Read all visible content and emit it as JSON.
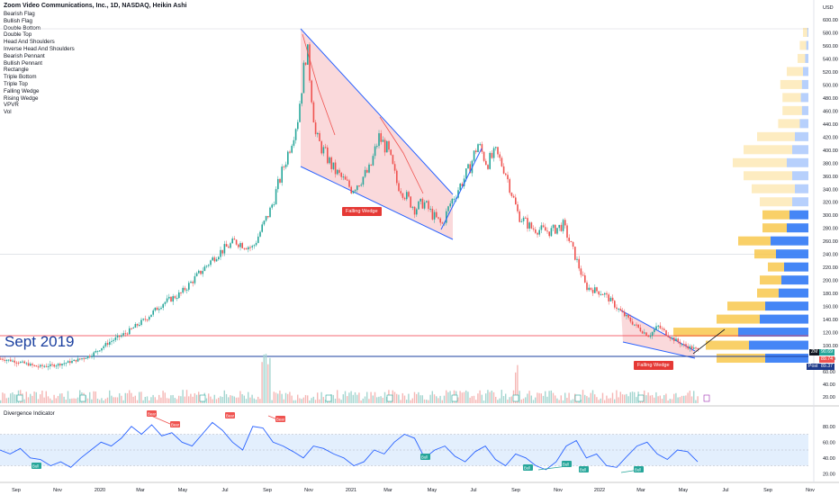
{
  "header": {
    "title": "Zoom Video Communications, Inc., 1D, NASDAQ, Heikin Ashi",
    "currency": "USD"
  },
  "studies": [
    "Bearish Flag",
    "Bullish Flag",
    "Double Bottom",
    "Double Top",
    "Head And Shoulders",
    "Inverse Head And Shoulders",
    "Bearish Pennant",
    "Bullish Pennant",
    "Rectangle",
    "Triple Bottom",
    "Triple Top",
    "Falling Wedge",
    "Rising Wedge",
    "VPVR",
    "Vol"
  ],
  "annotations": {
    "sept_label": "Sept 2019",
    "wedge1": "Falling Wedge",
    "wedge2": "Falling Wedge"
  },
  "price_tags": {
    "zm_label": "ZM",
    "zm_price": "90.69",
    "tag2": "89.74",
    "post_label": "Post",
    "post_price": "89.37"
  },
  "indicator": {
    "title": "Divergence Indicator",
    "bear_label": "Bear",
    "bull_label": "Bull"
  },
  "colors": {
    "up": "#26a69a",
    "down": "#ef5350",
    "wedge_line": "#2962ff",
    "wedge_fill": "#f8c9cc",
    "sept_line": "#f23645",
    "vp_blue": "#3179f5",
    "vp_yellow": "#f8c84d",
    "osc": "#2962ff"
  },
  "chart_data": {
    "type": "candlestick",
    "title": "Zoom Video Communications, Inc., 1D, NASDAQ, Heikin Ashi",
    "y_axis_ticks": [
      600,
      580,
      560,
      540,
      520,
      500,
      480,
      460,
      440,
      420,
      400,
      380,
      360,
      340,
      320,
      300,
      280,
      260,
      240,
      220,
      200,
      180,
      160,
      140,
      120,
      100,
      80,
      60
    ],
    "x_axis_ticks": [
      "Sep",
      "Nov",
      "2020",
      "Mar",
      "May",
      "Jul",
      "Sep",
      "Nov",
      "2021",
      "Mar",
      "May",
      "Jul",
      "Sep",
      "Nov",
      "2022",
      "Mar",
      "May",
      "Jul",
      "Sep",
      "Nov"
    ],
    "volume_ticks": [
      40,
      20
    ],
    "indicator_ticks": [
      80,
      60,
      40,
      20
    ],
    "price_path": [
      [
        0,
        80
      ],
      [
        20,
        75
      ],
      [
        40,
        68
      ],
      [
        60,
        70
      ],
      [
        80,
        76
      ],
      [
        100,
        85
      ],
      [
        120,
        105
      ],
      [
        140,
        120
      ],
      [
        160,
        140
      ],
      [
        180,
        165
      ],
      [
        200,
        180
      ],
      [
        220,
        210
      ],
      [
        240,
        240
      ],
      [
        260,
        260
      ],
      [
        280,
        250
      ],
      [
        300,
        310
      ],
      [
        320,
        400
      ],
      [
        330,
        450
      ],
      [
        340,
        560
      ],
      [
        350,
        420
      ],
      [
        370,
        370
      ],
      [
        390,
        340
      ],
      [
        410,
        370
      ],
      [
        420,
        420
      ],
      [
        430,
        400
      ],
      [
        440,
        350
      ],
      [
        460,
        310
      ],
      [
        470,
        320
      ],
      [
        480,
        300
      ],
      [
        490,
        285
      ],
      [
        500,
        320
      ],
      [
        520,
        370
      ],
      [
        530,
        410
      ],
      [
        540,
        380
      ],
      [
        550,
        395
      ],
      [
        560,
        370
      ],
      [
        575,
        300
      ],
      [
        590,
        280
      ],
      [
        610,
        275
      ],
      [
        625,
        285
      ],
      [
        640,
        230
      ],
      [
        650,
        190
      ],
      [
        670,
        180
      ],
      [
        690,
        150
      ],
      [
        710,
        125
      ],
      [
        720,
        115
      ],
      [
        730,
        130
      ],
      [
        745,
        112
      ],
      [
        760,
        100
      ],
      [
        775,
        93
      ]
    ],
    "volume_profile": [
      {
        "price": 580,
        "up": 8,
        "down": 2
      },
      {
        "price": 560,
        "up": 12,
        "down": 4
      },
      {
        "price": 540,
        "up": 14,
        "down": 6
      },
      {
        "price": 520,
        "up": 30,
        "down": 10
      },
      {
        "price": 500,
        "up": 40,
        "down": 12
      },
      {
        "price": 480,
        "up": 34,
        "down": 14
      },
      {
        "price": 460,
        "up": 36,
        "down": 12
      },
      {
        "price": 440,
        "up": 40,
        "down": 16
      },
      {
        "price": 420,
        "up": 70,
        "down": 25
      },
      {
        "price": 400,
        "up": 90,
        "down": 30
      },
      {
        "price": 380,
        "up": 100,
        "down": 40
      },
      {
        "price": 360,
        "up": 90,
        "down": 30
      },
      {
        "price": 340,
        "up": 80,
        "down": 25
      },
      {
        "price": 320,
        "up": 60,
        "down": 30
      },
      {
        "price": 300,
        "up": 50,
        "down": 35
      },
      {
        "price": 280,
        "up": 45,
        "down": 40
      },
      {
        "price": 260,
        "up": 60,
        "down": 70
      },
      {
        "price": 240,
        "up": 40,
        "down": 60
      },
      {
        "price": 220,
        "up": 30,
        "down": 45
      },
      {
        "price": 200,
        "up": 40,
        "down": 50
      },
      {
        "price": 180,
        "up": 40,
        "down": 55
      },
      {
        "price": 160,
        "up": 70,
        "down": 80
      },
      {
        "price": 140,
        "up": 80,
        "down": 90
      },
      {
        "price": 120,
        "up": 120,
        "down": 130
      },
      {
        "price": 100,
        "up": 80,
        "down": 110
      },
      {
        "price": 80,
        "up": 90,
        "down": 80
      }
    ],
    "oscillator": [
      50,
      45,
      52,
      40,
      38,
      30,
      35,
      28,
      40,
      50,
      60,
      55,
      65,
      80,
      70,
      82,
      68,
      72,
      60,
      55,
      70,
      85,
      75,
      60,
      50,
      80,
      78,
      60,
      55,
      48,
      40,
      55,
      52,
      45,
      40,
      30,
      35,
      50,
      45,
      60,
      70,
      65,
      40,
      50,
      55,
      42,
      35,
      48,
      55,
      38,
      30,
      45,
      40,
      30,
      25,
      35,
      55,
      62,
      40,
      45,
      30,
      28,
      42,
      55,
      60,
      45,
      38,
      50,
      48,
      35
    ],
    "ylim": [
      60,
      600
    ]
  }
}
